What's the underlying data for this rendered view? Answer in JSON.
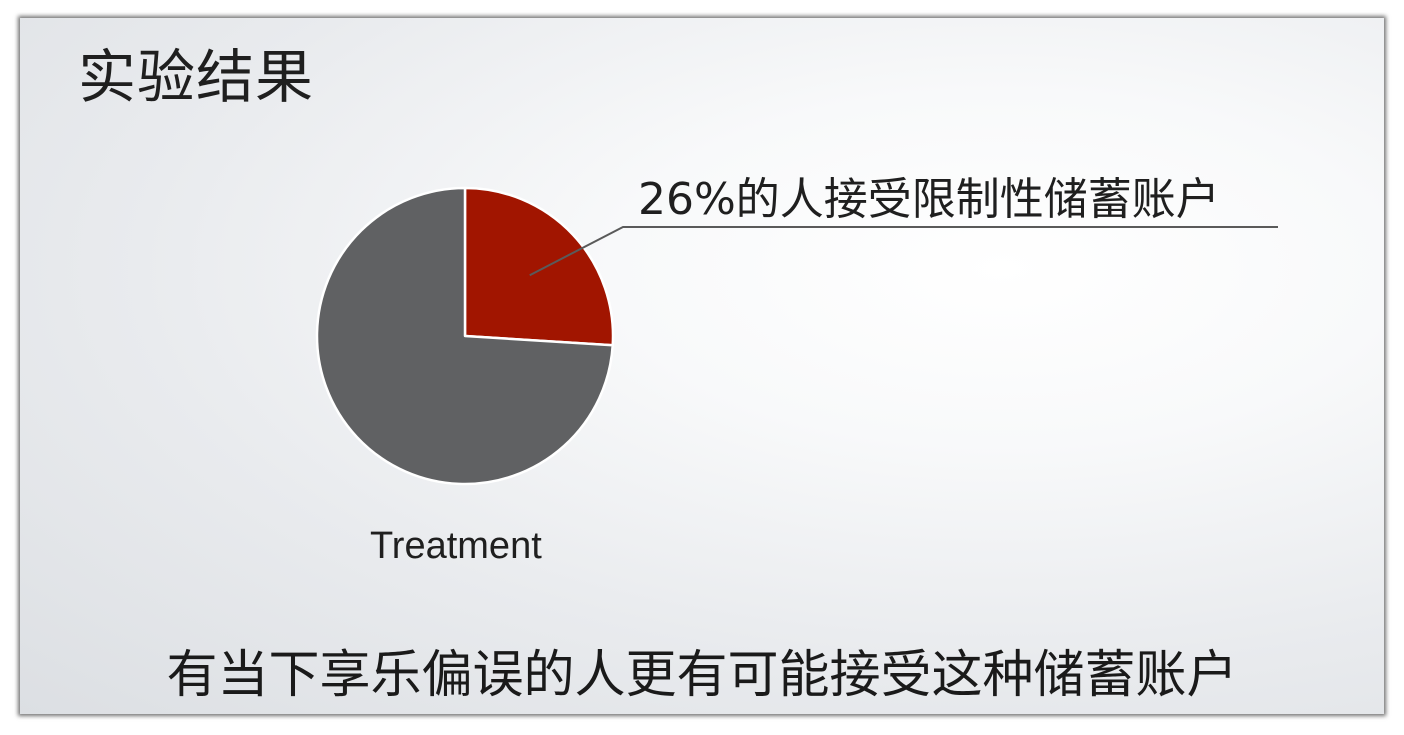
{
  "slide": {
    "title": "实验结果",
    "caption": "有当下享乐偏误的人更有可能接受这种储蓄账户"
  },
  "chart_data": {
    "type": "pie",
    "title": "",
    "category_label": "Treatment",
    "slices": [
      {
        "name": "",
        "value": 26,
        "color": "#a11500"
      },
      {
        "name": "",
        "value": 74,
        "color": "#606163"
      }
    ],
    "annotations": [
      {
        "text": "26%的人接受限制性储蓄账户",
        "slice_index": 0
      }
    ]
  },
  "colors": {
    "accepted": "#a11500",
    "rest": "#606163",
    "leader_line": "#5a5a5a"
  }
}
